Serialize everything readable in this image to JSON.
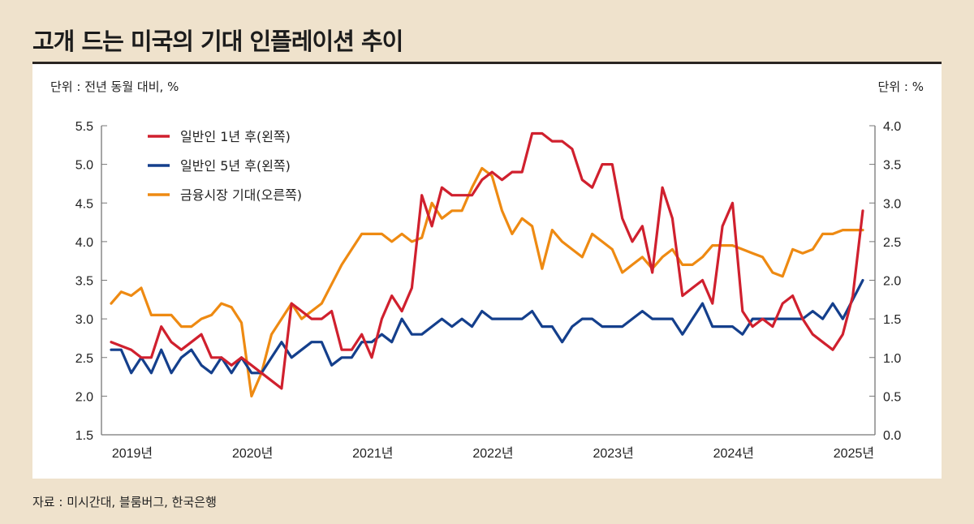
{
  "title": "고개 드는 미국의 기대 인플레이션 추이",
  "unit_left": "단위 : 전년 동월 대비, %",
  "unit_right": "단위 : %",
  "source": "자료 : 미시간대, 블룸버그, 한국은행",
  "chart_data": {
    "type": "line",
    "x_start": "2019-01",
    "x_end": "2025-04",
    "x_frequency": "monthly",
    "x_tick_labels": [
      "2019년",
      "2020년",
      "2021년",
      "2022년",
      "2023년",
      "2024년",
      "2025년"
    ],
    "y_left": {
      "range": [
        1.5,
        5.5
      ],
      "ticks": [
        "1.5",
        "2.0",
        "2.5",
        "3.0",
        "3.5",
        "4.0",
        "4.5",
        "5.0",
        "5.5"
      ]
    },
    "y_right": {
      "range": [
        0.0,
        4.0
      ],
      "ticks": [
        "0.0",
        "0.5",
        "1.0",
        "1.5",
        "2.0",
        "2.5",
        "3.0",
        "3.5",
        "4.0"
      ]
    },
    "grid": false,
    "legend_placement": "top-left",
    "series": [
      {
        "name": "일반인 1년 후(왼쪽)",
        "axis": "left",
        "color": "#d0202e",
        "values": [
          2.7,
          2.65,
          2.6,
          2.5,
          2.5,
          2.9,
          2.7,
          2.6,
          2.7,
          2.8,
          2.5,
          2.5,
          2.4,
          2.5,
          2.4,
          2.3,
          2.2,
          2.1,
          3.2,
          3.1,
          3.0,
          3.0,
          3.1,
          2.6,
          2.6,
          2.8,
          2.5,
          3.0,
          3.3,
          3.1,
          3.4,
          4.6,
          4.2,
          4.7,
          4.6,
          4.6,
          4.6,
          4.8,
          4.9,
          4.8,
          4.9,
          4.9,
          5.4,
          5.4,
          5.3,
          5.3,
          5.2,
          4.8,
          4.7,
          5.0,
          5.0,
          4.3,
          4.0,
          4.2,
          3.6,
          4.7,
          4.3,
          3.3,
          3.4,
          3.5,
          3.2,
          4.2,
          4.5,
          3.1,
          2.9,
          3.0,
          2.9,
          3.2,
          3.3,
          3.0,
          2.8,
          2.7,
          2.6,
          2.8,
          3.3,
          4.4
        ]
      },
      {
        "name": "일반인 5년 후(왼쪽)",
        "axis": "left",
        "color": "#143f8c",
        "values": [
          2.6,
          2.6,
          2.3,
          2.5,
          2.3,
          2.6,
          2.3,
          2.5,
          2.6,
          2.4,
          2.3,
          2.5,
          2.3,
          2.5,
          2.3,
          2.3,
          2.5,
          2.7,
          2.5,
          2.6,
          2.7,
          2.7,
          2.4,
          2.5,
          2.5,
          2.7,
          2.7,
          2.8,
          2.7,
          3.0,
          2.8,
          2.8,
          2.9,
          3.0,
          2.9,
          3.0,
          2.9,
          3.1,
          3.0,
          3.0,
          3.0,
          3.0,
          3.1,
          2.9,
          2.9,
          2.7,
          2.9,
          3.0,
          3.0,
          2.9,
          2.9,
          2.9,
          3.0,
          3.1,
          3.0,
          3.0,
          3.0,
          2.8,
          3.0,
          3.2,
          2.9,
          2.9,
          2.9,
          2.8,
          3.0,
          3.0,
          3.0,
          3.0,
          3.0,
          3.0,
          3.1,
          3.0,
          3.2,
          3.0,
          3.25,
          3.5
        ]
      },
      {
        "name": "금융시장 기대(오른쪽)",
        "axis": "right",
        "color": "#ee8a12",
        "values": [
          1.7,
          1.85,
          1.8,
          1.9,
          1.55,
          1.55,
          1.55,
          1.4,
          1.4,
          1.5,
          1.55,
          1.7,
          1.65,
          1.45,
          0.5,
          0.8,
          1.3,
          1.5,
          1.7,
          1.5,
          1.6,
          1.7,
          1.95,
          2.2,
          2.4,
          2.6,
          2.6,
          2.6,
          2.5,
          2.6,
          2.5,
          2.55,
          3.0,
          2.8,
          2.9,
          2.9,
          3.2,
          3.45,
          3.35,
          2.9,
          2.6,
          2.8,
          2.7,
          2.15,
          2.65,
          2.5,
          2.4,
          2.3,
          2.6,
          2.5,
          2.4,
          2.1,
          2.2,
          2.3,
          2.15,
          2.3,
          2.4,
          2.2,
          2.2,
          2.3,
          2.45,
          2.45,
          2.45,
          2.4,
          2.35,
          2.3,
          2.1,
          2.05,
          2.4,
          2.35,
          2.4,
          2.6,
          2.6,
          2.65,
          2.65,
          2.65
        ]
      }
    ]
  }
}
